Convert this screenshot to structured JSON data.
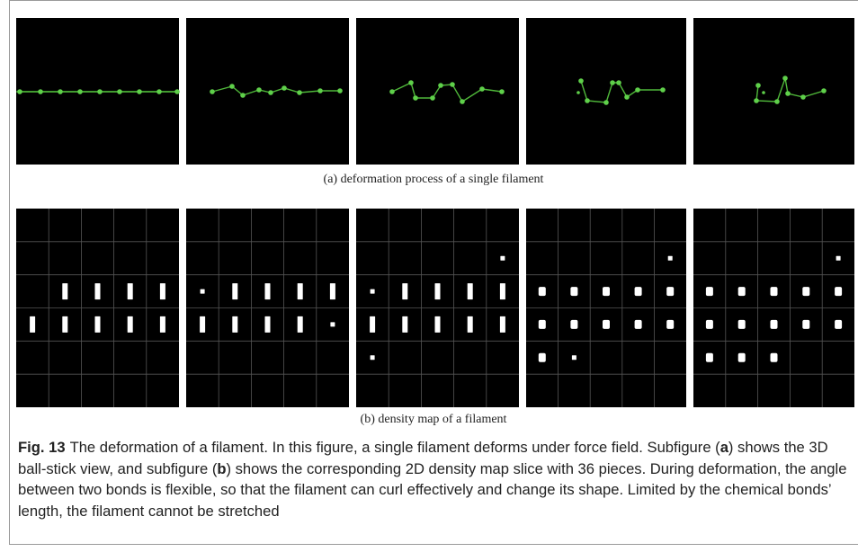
{
  "figure": {
    "subcaptions": [
      "(a) deformation process of a single filament",
      "(b) density map of a filament"
    ],
    "caption": {
      "label": "Fig. 13",
      "parts": [
        "The deformation of a filament. In this figure, a single filament deforms under force field. Subfigure (",
        "a",
        ") shows the 3D ball-stick view, and subfigure (",
        "b",
        ") shows the corresponding 2D density map slice with 36 pieces. During deformation, the angle between two bonds is flexible, so that the filament can curl effectively and change its shape. Limited by the chemical bonds’ length, the filament cannot be stretched"
      ]
    }
  }
}
